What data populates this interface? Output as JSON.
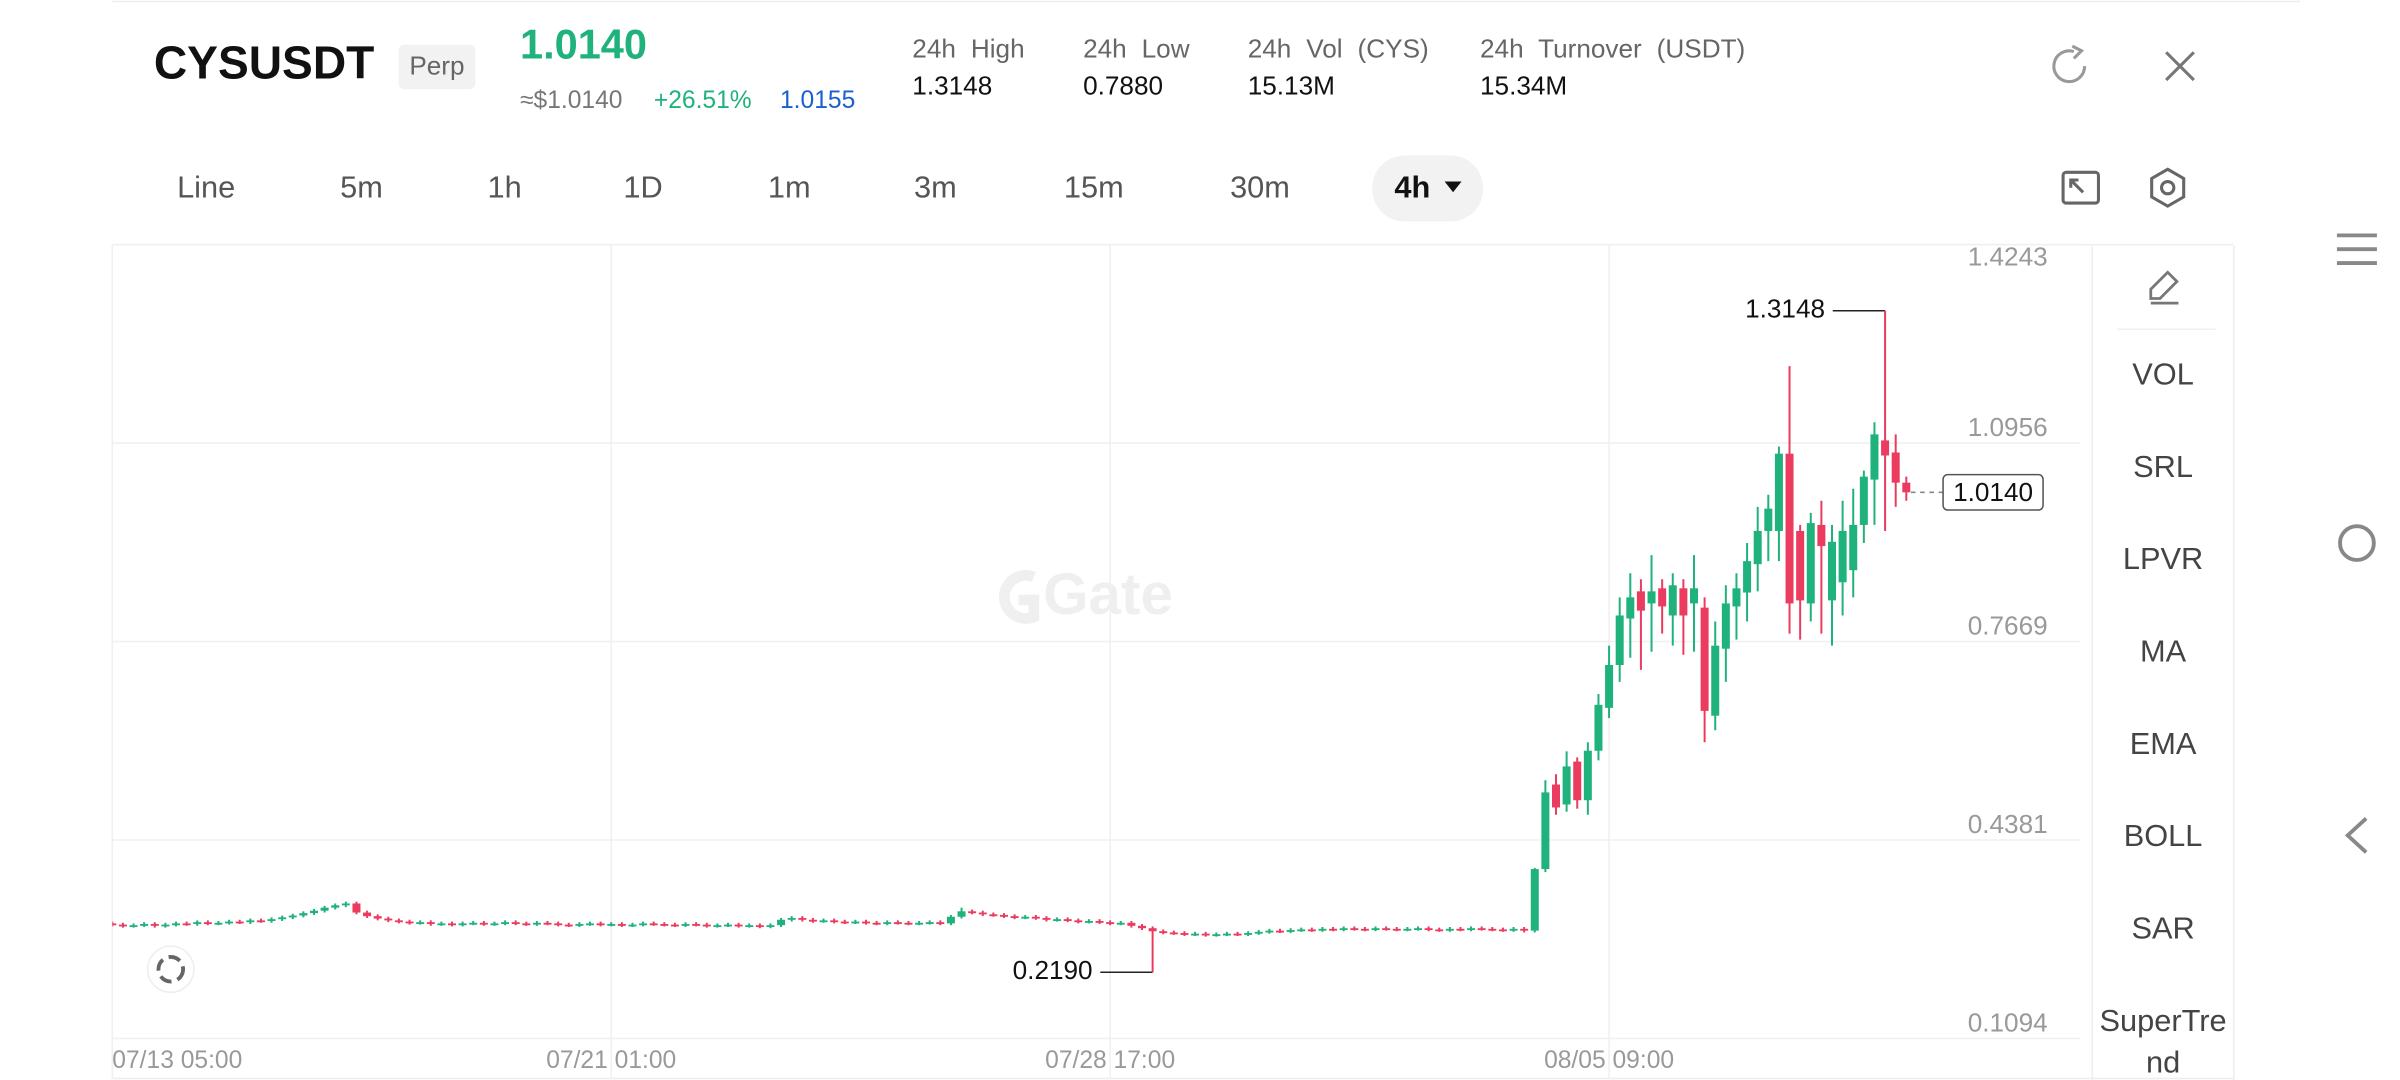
{
  "header": {
    "symbol": "CYSUSDT",
    "contract": "Perp",
    "price": "1.0140",
    "price_usd": "≈$1.0140",
    "change": "+26.51%",
    "mark_price": "1.0155",
    "stats": [
      {
        "label": "24h High",
        "value": "1.3148"
      },
      {
        "label": "24h Low",
        "value": "0.7880"
      },
      {
        "label": "24h Vol (CYS)",
        "value": "15.13M"
      },
      {
        "label": "24h Turnover (USDT)",
        "value": "15.34M"
      }
    ]
  },
  "timeframes": [
    "Line",
    "5m",
    "1h",
    "1D",
    "1m",
    "3m",
    "15m",
    "30m",
    "4h"
  ],
  "selected_timeframe": 8,
  "indicators": [
    "VOL",
    "SRL",
    "LPVR",
    "MA",
    "EMA",
    "BOLL",
    "SAR",
    "SuperTrend"
  ],
  "watermark": "Gate",
  "chart_data": {
    "type": "candlestick",
    "up_color": "#20b27c",
    "down_color": "#eb3c5f",
    "ylim": [
      0.1094,
      1.4243
    ],
    "yticks": [
      0.1094,
      0.4381,
      0.7669,
      1.0956,
      1.4243
    ],
    "grid": true,
    "categories": [
      "07/13 05:00",
      null,
      null,
      null,
      null,
      null,
      null,
      null,
      null,
      null,
      null,
      null,
      null,
      null,
      null,
      null,
      null,
      null,
      null,
      null,
      null,
      null,
      null,
      null,
      null,
      null,
      null,
      null,
      null,
      null,
      null,
      null,
      null,
      null,
      null,
      null,
      null,
      null,
      null,
      null,
      null,
      null,
      null,
      null,
      null,
      null,
      null,
      "07/21 01:00",
      null,
      null,
      null,
      null,
      null,
      null,
      null,
      null,
      null,
      null,
      null,
      null,
      null,
      null,
      null,
      null,
      null,
      null,
      null,
      null,
      null,
      null,
      null,
      null,
      null,
      null,
      null,
      null,
      null,
      null,
      null,
      null,
      null,
      null,
      null,
      null,
      null,
      null,
      null,
      null,
      null,
      null,
      null,
      null,
      null,
      null,
      "07/28 17:00",
      null,
      null,
      null,
      null,
      null,
      null,
      null,
      null,
      null,
      null,
      null,
      null,
      null,
      null,
      null,
      null,
      null,
      null,
      null,
      null,
      null,
      null,
      null,
      null,
      null,
      null,
      null,
      null,
      null,
      null,
      null,
      null,
      null,
      null,
      null,
      null,
      null,
      null,
      null,
      null,
      null,
      null,
      null,
      null,
      null,
      null,
      "08/05 09:00",
      null,
      null,
      null,
      null,
      null,
      null,
      null,
      null,
      null,
      null,
      null,
      null,
      null,
      null,
      null,
      null,
      null,
      null,
      null,
      null,
      null,
      null,
      null,
      null,
      null,
      null,
      null,
      null,
      null
    ],
    "ohlc": [
      [
        0.3,
        0.303,
        0.295,
        0.298
      ],
      [
        0.298,
        0.301,
        0.293,
        0.296
      ],
      [
        0.296,
        0.3,
        0.293,
        0.297
      ],
      [
        0.297,
        0.302,
        0.294,
        0.299
      ],
      [
        0.299,
        0.302,
        0.293,
        0.296
      ],
      [
        0.296,
        0.301,
        0.293,
        0.298
      ],
      [
        0.298,
        0.303,
        0.295,
        0.3
      ],
      [
        0.3,
        0.303,
        0.296,
        0.299
      ],
      [
        0.299,
        0.305,
        0.296,
        0.302
      ],
      [
        0.302,
        0.305,
        0.297,
        0.3
      ],
      [
        0.3,
        0.304,
        0.297,
        0.301
      ],
      [
        0.301,
        0.306,
        0.298,
        0.303
      ],
      [
        0.303,
        0.306,
        0.299,
        0.302
      ],
      [
        0.302,
        0.308,
        0.299,
        0.305
      ],
      [
        0.305,
        0.308,
        0.301,
        0.304
      ],
      [
        0.304,
        0.31,
        0.301,
        0.307
      ],
      [
        0.307,
        0.313,
        0.304,
        0.31
      ],
      [
        0.31,
        0.316,
        0.307,
        0.313
      ],
      [
        0.313,
        0.32,
        0.31,
        0.317
      ],
      [
        0.317,
        0.324,
        0.314,
        0.321
      ],
      [
        0.321,
        0.329,
        0.318,
        0.326
      ],
      [
        0.326,
        0.333,
        0.323,
        0.33
      ],
      [
        0.33,
        0.336,
        0.327,
        0.333
      ],
      [
        0.333,
        0.336,
        0.315,
        0.318
      ],
      [
        0.318,
        0.321,
        0.309,
        0.312
      ],
      [
        0.312,
        0.315,
        0.305,
        0.308
      ],
      [
        0.308,
        0.311,
        0.302,
        0.305
      ],
      [
        0.305,
        0.308,
        0.3,
        0.303
      ],
      [
        0.303,
        0.306,
        0.298,
        0.301
      ],
      [
        0.301,
        0.305,
        0.298,
        0.302
      ],
      [
        0.302,
        0.305,
        0.296,
        0.299
      ],
      [
        0.299,
        0.303,
        0.296,
        0.3
      ],
      [
        0.3,
        0.303,
        0.295,
        0.298
      ],
      [
        0.298,
        0.303,
        0.295,
        0.3
      ],
      [
        0.3,
        0.304,
        0.297,
        0.301
      ],
      [
        0.301,
        0.304,
        0.296,
        0.299
      ],
      [
        0.299,
        0.303,
        0.296,
        0.3
      ],
      [
        0.3,
        0.305,
        0.297,
        0.302
      ],
      [
        0.302,
        0.305,
        0.297,
        0.3
      ],
      [
        0.3,
        0.303,
        0.296,
        0.299
      ],
      [
        0.299,
        0.304,
        0.296,
        0.301
      ],
      [
        0.301,
        0.304,
        0.297,
        0.3
      ],
      [
        0.3,
        0.303,
        0.295,
        0.298
      ],
      [
        0.298,
        0.301,
        0.294,
        0.297
      ],
      [
        0.297,
        0.302,
        0.294,
        0.299
      ],
      [
        0.299,
        0.303,
        0.296,
        0.3
      ],
      [
        0.3,
        0.303,
        0.295,
        0.298
      ],
      [
        0.298,
        0.302,
        0.295,
        0.299
      ],
      [
        0.299,
        0.302,
        0.294,
        0.297
      ],
      [
        0.297,
        0.301,
        0.294,
        0.298
      ],
      [
        0.298,
        0.303,
        0.295,
        0.3
      ],
      [
        0.3,
        0.303,
        0.296,
        0.299
      ],
      [
        0.299,
        0.302,
        0.295,
        0.298
      ],
      [
        0.298,
        0.301,
        0.294,
        0.297
      ],
      [
        0.297,
        0.302,
        0.294,
        0.299
      ],
      [
        0.299,
        0.302,
        0.295,
        0.298
      ],
      [
        0.298,
        0.301,
        0.293,
        0.296
      ],
      [
        0.296,
        0.3,
        0.293,
        0.297
      ],
      [
        0.297,
        0.301,
        0.294,
        0.298
      ],
      [
        0.298,
        0.301,
        0.293,
        0.296
      ],
      [
        0.296,
        0.3,
        0.293,
        0.297
      ],
      [
        0.297,
        0.3,
        0.292,
        0.295
      ],
      [
        0.295,
        0.3,
        0.292,
        0.297
      ],
      [
        0.297,
        0.309,
        0.294,
        0.306
      ],
      [
        0.306,
        0.312,
        0.303,
        0.309
      ],
      [
        0.309,
        0.312,
        0.303,
        0.306
      ],
      [
        0.306,
        0.309,
        0.301,
        0.304
      ],
      [
        0.304,
        0.308,
        0.301,
        0.305
      ],
      [
        0.305,
        0.308,
        0.3,
        0.303
      ],
      [
        0.303,
        0.306,
        0.299,
        0.302
      ],
      [
        0.302,
        0.306,
        0.299,
        0.303
      ],
      [
        0.303,
        0.306,
        0.298,
        0.301
      ],
      [
        0.301,
        0.304,
        0.297,
        0.3
      ],
      [
        0.3,
        0.305,
        0.297,
        0.302
      ],
      [
        0.302,
        0.305,
        0.298,
        0.301
      ],
      [
        0.301,
        0.304,
        0.297,
        0.3
      ],
      [
        0.3,
        0.304,
        0.297,
        0.301
      ],
      [
        0.301,
        0.305,
        0.298,
        0.302
      ],
      [
        0.302,
        0.305,
        0.297,
        0.3
      ],
      [
        0.3,
        0.314,
        0.297,
        0.311
      ],
      [
        0.311,
        0.326,
        0.308,
        0.32
      ],
      [
        0.32,
        0.323,
        0.315,
        0.318
      ],
      [
        0.318,
        0.321,
        0.312,
        0.315
      ],
      [
        0.315,
        0.318,
        0.311,
        0.314
      ],
      [
        0.314,
        0.317,
        0.309,
        0.312
      ],
      [
        0.312,
        0.315,
        0.307,
        0.31
      ],
      [
        0.31,
        0.314,
        0.307,
        0.311
      ],
      [
        0.311,
        0.314,
        0.306,
        0.309
      ],
      [
        0.309,
        0.312,
        0.303,
        0.306
      ],
      [
        0.306,
        0.31,
        0.303,
        0.307
      ],
      [
        0.307,
        0.31,
        0.302,
        0.305
      ],
      [
        0.305,
        0.308,
        0.3,
        0.303
      ],
      [
        0.303,
        0.307,
        0.3,
        0.304
      ],
      [
        0.304,
        0.307,
        0.299,
        0.302
      ],
      [
        0.302,
        0.305,
        0.297,
        0.3
      ],
      [
        0.3,
        0.304,
        0.297,
        0.301
      ],
      [
        0.301,
        0.304,
        0.293,
        0.296
      ],
      [
        0.296,
        0.299,
        0.289,
        0.292
      ],
      [
        0.292,
        0.295,
        0.219,
        0.287
      ],
      [
        0.287,
        0.29,
        0.282,
        0.285
      ],
      [
        0.285,
        0.288,
        0.281,
        0.284
      ],
      [
        0.284,
        0.287,
        0.279,
        0.282
      ],
      [
        0.282,
        0.286,
        0.279,
        0.283
      ],
      [
        0.283,
        0.286,
        0.278,
        0.281
      ],
      [
        0.281,
        0.285,
        0.278,
        0.282
      ],
      [
        0.282,
        0.286,
        0.279,
        0.283
      ],
      [
        0.283,
        0.286,
        0.279,
        0.282
      ],
      [
        0.282,
        0.287,
        0.279,
        0.284
      ],
      [
        0.284,
        0.289,
        0.281,
        0.286
      ],
      [
        0.286,
        0.291,
        0.283,
        0.288
      ],
      [
        0.288,
        0.291,
        0.284,
        0.287
      ],
      [
        0.287,
        0.292,
        0.284,
        0.289
      ],
      [
        0.289,
        0.293,
        0.286,
        0.29
      ],
      [
        0.29,
        0.293,
        0.286,
        0.289
      ],
      [
        0.289,
        0.294,
        0.286,
        0.291
      ],
      [
        0.291,
        0.294,
        0.287,
        0.29
      ],
      [
        0.29,
        0.295,
        0.287,
        0.292
      ],
      [
        0.292,
        0.295,
        0.288,
        0.291
      ],
      [
        0.291,
        0.294,
        0.287,
        0.29
      ],
      [
        0.29,
        0.295,
        0.287,
        0.292
      ],
      [
        0.292,
        0.295,
        0.288,
        0.291
      ],
      [
        0.291,
        0.294,
        0.287,
        0.29
      ],
      [
        0.29,
        0.294,
        0.287,
        0.291
      ],
      [
        0.291,
        0.295,
        0.288,
        0.292
      ],
      [
        0.292,
        0.295,
        0.287,
        0.29
      ],
      [
        0.29,
        0.293,
        0.286,
        0.289
      ],
      [
        0.289,
        0.294,
        0.286,
        0.291
      ],
      [
        0.291,
        0.294,
        0.287,
        0.29
      ],
      [
        0.29,
        0.295,
        0.287,
        0.292
      ],
      [
        0.292,
        0.295,
        0.288,
        0.291
      ],
      [
        0.291,
        0.294,
        0.287,
        0.29
      ],
      [
        0.29,
        0.293,
        0.286,
        0.289
      ],
      [
        0.289,
        0.294,
        0.286,
        0.291
      ],
      [
        0.291,
        0.294,
        0.285,
        0.288
      ],
      [
        0.288,
        0.392,
        0.285,
        0.39
      ],
      [
        0.39,
        0.537,
        0.385,
        0.517
      ],
      [
        0.53,
        0.547,
        0.48,
        0.492
      ],
      [
        0.497,
        0.585,
        0.485,
        0.56
      ],
      [
        0.568,
        0.575,
        0.49,
        0.504
      ],
      [
        0.504,
        0.6,
        0.48,
        0.586
      ],
      [
        0.586,
        0.68,
        0.57,
        0.662
      ],
      [
        0.657,
        0.76,
        0.64,
        0.728
      ],
      [
        0.728,
        0.84,
        0.7,
        0.81
      ],
      [
        0.805,
        0.88,
        0.74,
        0.84
      ],
      [
        0.85,
        0.87,
        0.72,
        0.818
      ],
      [
        0.83,
        0.91,
        0.75,
        0.85
      ],
      [
        0.855,
        0.87,
        0.78,
        0.825
      ],
      [
        0.81,
        0.88,
        0.76,
        0.86
      ],
      [
        0.855,
        0.87,
        0.745,
        0.81
      ],
      [
        0.83,
        0.91,
        0.75,
        0.855
      ],
      [
        0.823,
        0.84,
        0.6,
        0.652
      ],
      [
        0.644,
        0.8,
        0.62,
        0.76
      ],
      [
        0.755,
        0.86,
        0.7,
        0.83
      ],
      [
        0.825,
        0.88,
        0.77,
        0.855
      ],
      [
        0.848,
        0.93,
        0.8,
        0.9
      ],
      [
        0.895,
        0.99,
        0.85,
        0.95
      ],
      [
        0.95,
        1.01,
        0.9,
        0.987
      ],
      [
        0.95,
        1.09,
        0.9,
        1.078
      ],
      [
        1.078,
        1.223,
        0.78,
        0.83
      ],
      [
        0.95,
        0.96,
        0.77,
        0.835
      ],
      [
        0.83,
        0.98,
        0.8,
        0.963
      ],
      [
        0.96,
        1.0,
        0.78,
        0.925
      ],
      [
        0.835,
        0.96,
        0.76,
        0.932
      ],
      [
        0.865,
        1.0,
        0.81,
        0.95
      ],
      [
        0.885,
        1.02,
        0.84,
        0.96
      ],
      [
        0.96,
        1.05,
        0.93,
        1.04
      ],
      [
        1.035,
        1.13,
        0.96,
        1.11
      ],
      [
        1.1,
        1.3148,
        0.95,
        1.075
      ],
      [
        1.08,
        1.11,
        0.99,
        1.03
      ],
      [
        1.03,
        1.04,
        1.0,
        1.014
      ]
    ],
    "annotations": [
      {
        "value": 1.3148,
        "label": "1.3148"
      },
      {
        "value": 0.219,
        "label": "0.2190"
      },
      {
        "value": 1.014,
        "label": "1.0140"
      }
    ]
  }
}
